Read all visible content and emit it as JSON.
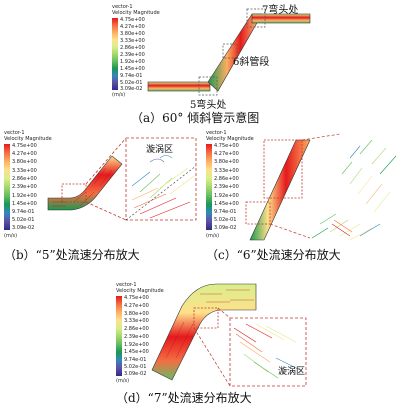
{
  "legend": {
    "title_line1": "vector-1",
    "title_line2": "Velocity Magnitude",
    "values": [
      "4.75e+00",
      "4.27e+00",
      "3.80e+00",
      "3.33e+00",
      "2.86e+00",
      "2.39e+00",
      "1.92e+00",
      "1.45e+00",
      "9.74e-01",
      "5.02e-01",
      "3.09e-02"
    ],
    "unit": "(m/s)",
    "colors": [
      "#e41a1c",
      "#f46d43",
      "#fdae61",
      "#fee08b",
      "#d9ef8b",
      "#a6d96a",
      "#66bd63",
      "#1a9850",
      "#3288bd",
      "#5e4fa2",
      "#2c2c8c"
    ]
  },
  "panel_a": {
    "labels": {
      "elbow7": "7弯头处",
      "incline6": "6斜管段",
      "elbow5": "5弯头处"
    },
    "caption": "（a）60° 倾斜管示意图"
  },
  "panel_b": {
    "vortex": "漩涡区",
    "caption": "（b）“5”处流速分布放大"
  },
  "panel_c": {
    "caption": "（c）“6”处流速分布放大"
  },
  "panel_d": {
    "vortex": "漩涡区",
    "caption": "（d）“7”处流速分布放大"
  },
  "colors": {
    "pipe_outline": "#333333",
    "zoom_box": "#c0392b",
    "dash": "#555555"
  }
}
